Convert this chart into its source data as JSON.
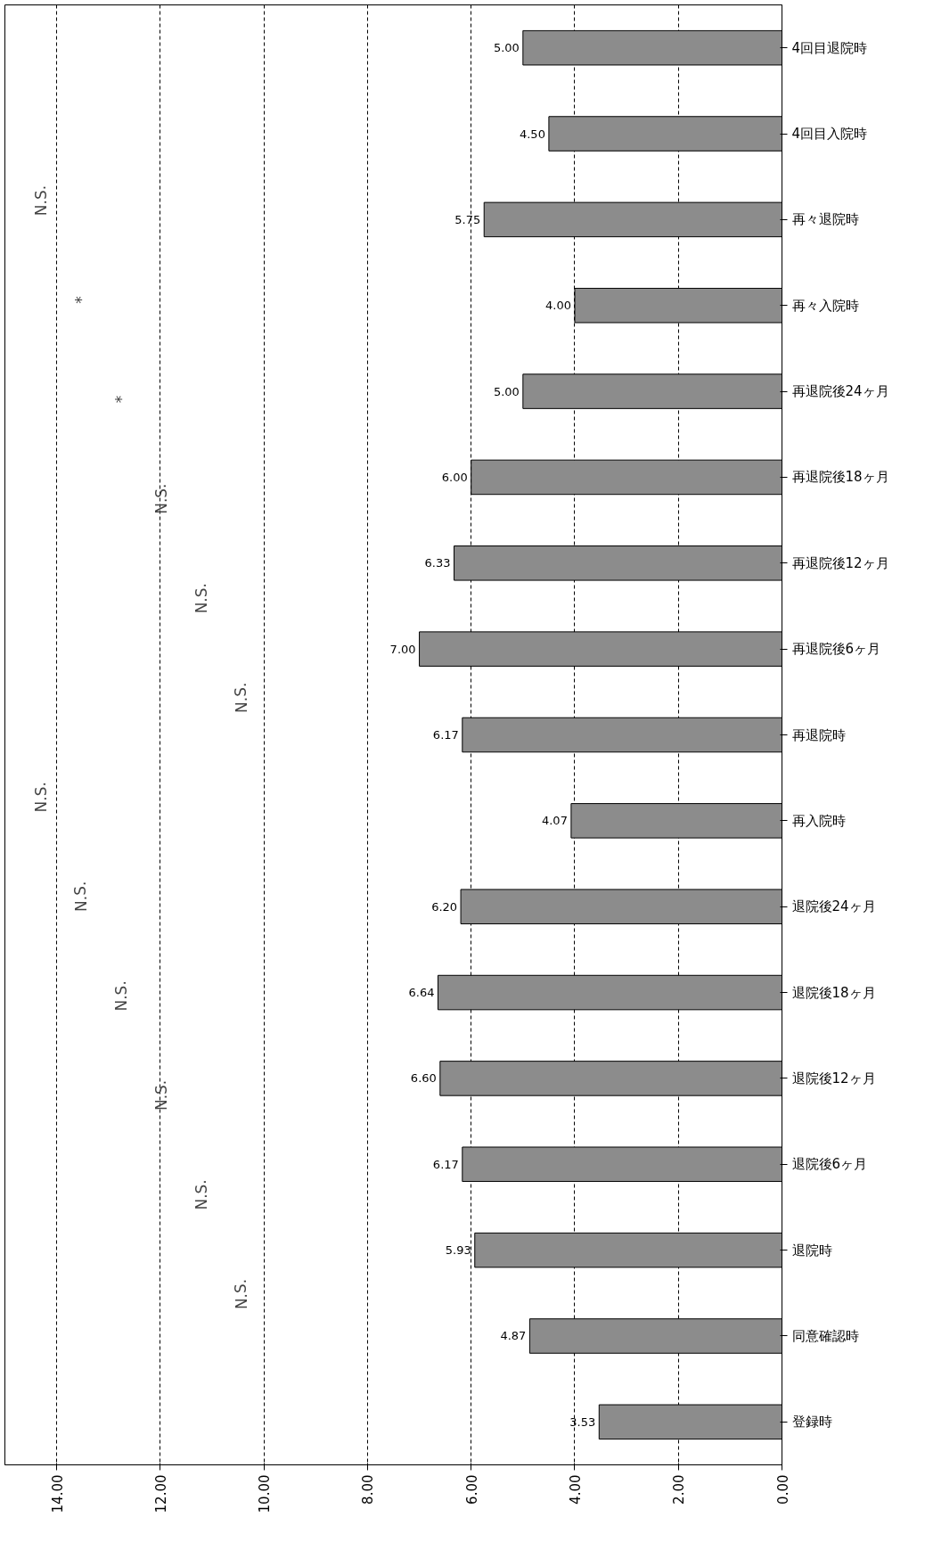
{
  "chart_data": {
    "type": "bar",
    "orientation": "horizontal",
    "categories": [
      "4回目退院時",
      "4回目入院時",
      "再々退院時",
      "再々入院時",
      "再退院後24ヶ月",
      "再退院後18ヶ月",
      "再退院後12ヶ月",
      "再退院後6ヶ月",
      "再退院時",
      "再入院時",
      "退院後24ヶ月",
      "退院後18ヶ月",
      "退院後12ヶ月",
      "退院後6ヶ月",
      "退院時",
      "同意確認時",
      "登録時"
    ],
    "values": [
      5.0,
      4.5,
      5.75,
      4.0,
      5.0,
      6.0,
      6.33,
      7.0,
      6.17,
      4.07,
      6.2,
      6.64,
      6.6,
      6.17,
      5.93,
      4.87,
      3.53
    ],
    "value_labels": [
      "5.00",
      "4.50",
      "5.75",
      "4.00",
      "5.00",
      "6.00",
      "6.33",
      "7.00",
      "6.17",
      "4.07",
      "6.20",
      "6.64",
      "6.60",
      "6.17",
      "5.93",
      "4.87",
      "3.53"
    ],
    "color": "#8c8c8c",
    "xlim": [
      15,
      0
    ],
    "xticks": [
      {
        "value": 0,
        "label": "0.00"
      },
      {
        "value": 2,
        "label": "2.00"
      },
      {
        "value": 4,
        "label": "4.00"
      },
      {
        "value": 6,
        "label": "6.00"
      },
      {
        "value": 8,
        "label": "8.00"
      },
      {
        "value": 10,
        "label": "10.00"
      },
      {
        "value": 12,
        "label": "12.00"
      },
      {
        "value": 14,
        "label": "14.00"
      }
    ],
    "grid": "x",
    "annotations": [
      "N.S.",
      "*",
      "*",
      "N.S.",
      "N.S.",
      "N.S.",
      "N.S.",
      "N.S.",
      "N.S.",
      "N.S.",
      "N.S.",
      "N.S."
    ]
  }
}
